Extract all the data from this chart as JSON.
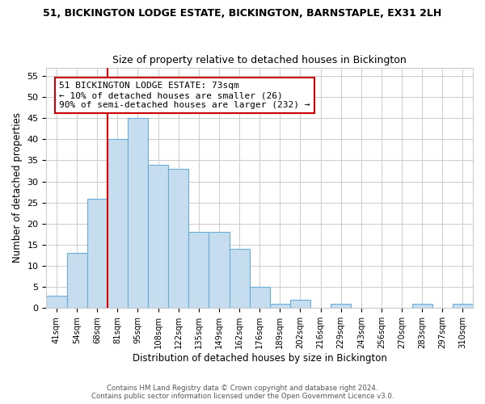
{
  "title": "51, BICKINGTON LODGE ESTATE, BICKINGTON, BARNSTAPLE, EX31 2LH",
  "subtitle": "Size of property relative to detached houses in Bickington",
  "xlabel": "Distribution of detached houses by size in Bickington",
  "ylabel": "Number of detached properties",
  "bar_labels": [
    "41sqm",
    "54sqm",
    "68sqm",
    "81sqm",
    "95sqm",
    "108sqm",
    "122sqm",
    "135sqm",
    "149sqm",
    "162sqm",
    "176sqm",
    "189sqm",
    "202sqm",
    "216sqm",
    "229sqm",
    "243sqm",
    "256sqm",
    "270sqm",
    "283sqm",
    "297sqm",
    "310sqm"
  ],
  "bar_values": [
    3,
    13,
    26,
    40,
    45,
    34,
    33,
    18,
    18,
    14,
    5,
    1,
    2,
    0,
    1,
    0,
    0,
    0,
    1,
    0,
    1
  ],
  "bar_color": "#c6ddef",
  "bar_edge_color": "#6aaed6",
  "vline_color": "#dd0000",
  "annotation_text": "51 BICKINGTON LODGE ESTATE: 73sqm\n← 10% of detached houses are smaller (26)\n90% of semi-detached houses are larger (232) →",
  "annotation_box_color": "#ffffff",
  "annotation_box_edge": "#cc0000",
  "ylim": [
    0,
    57
  ],
  "yticks": [
    0,
    5,
    10,
    15,
    20,
    25,
    30,
    35,
    40,
    45,
    50,
    55
  ],
  "footer1": "Contains HM Land Registry data © Crown copyright and database right 2024.",
  "footer2": "Contains public sector information licensed under the Open Government Licence v3.0.",
  "background_color": "#ffffff",
  "grid_color": "#cccccc"
}
